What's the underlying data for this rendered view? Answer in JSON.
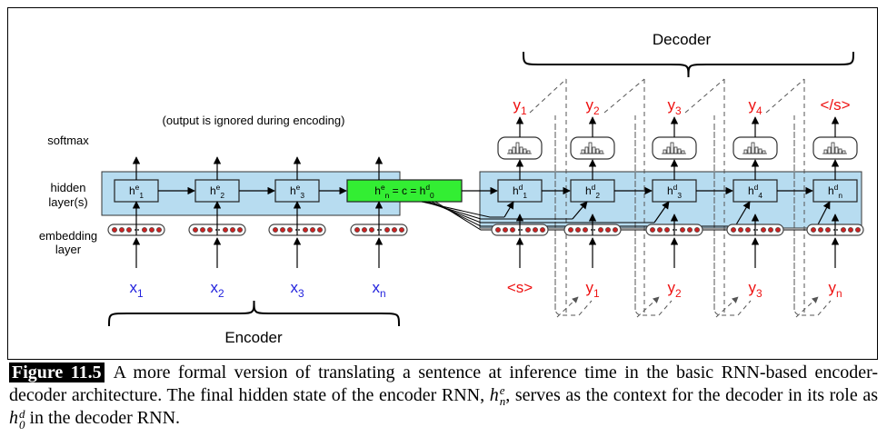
{
  "figure": {
    "decoder_label": "Decoder",
    "encoder_label": "Encoder",
    "note": "(output is ignored during encoding)",
    "row_labels": {
      "softmax": "softmax",
      "hidden_line1": "hidden",
      "hidden_line2": "layer(s)",
      "embedding_line1": "embedding",
      "embedding_line2": "layer"
    },
    "encoder": {
      "hidden": [
        {
          "base": "h",
          "sup": "e",
          "sub": "1"
        },
        {
          "base": "h",
          "sup": "e",
          "sub": "2"
        },
        {
          "base": "h",
          "sup": "e",
          "sub": "3"
        }
      ],
      "final": {
        "base": "h",
        "sup": "e",
        "sub": "n",
        "mid": " = c = ",
        "base2": "h",
        "sup2": "d",
        "sub2": "0"
      },
      "inputs": [
        {
          "base": "x",
          "sub": "1"
        },
        {
          "base": "x",
          "sub": "2"
        },
        {
          "base": "x",
          "sub": "3"
        },
        {
          "base": "x",
          "sub": "n"
        }
      ]
    },
    "decoder": {
      "hidden": [
        {
          "base": "h",
          "sup": "d",
          "sub": "1"
        },
        {
          "base": "h",
          "sup": "d",
          "sub": "2"
        },
        {
          "base": "h",
          "sup": "d",
          "sub": "3"
        },
        {
          "base": "h",
          "sup": "d",
          "sub": "4"
        },
        {
          "base": "h",
          "sup": "d",
          "sub": "n"
        }
      ],
      "outputs": [
        {
          "base": "y",
          "sub": "1"
        },
        {
          "base": "y",
          "sub": "2"
        },
        {
          "base": "y",
          "sub": "3"
        },
        {
          "base": "y",
          "sub": "4"
        },
        {
          "base": "</s>",
          "sub": ""
        }
      ],
      "inputs": [
        {
          "base": "<s>",
          "sub": ""
        },
        {
          "base": "y",
          "sub": "1"
        },
        {
          "base": "y",
          "sub": "2"
        },
        {
          "base": "y",
          "sub": "3"
        },
        {
          "base": "y",
          "sub": "n"
        }
      ]
    },
    "colors": {
      "layer_fill": "#b7dcf0",
      "cell_fill": "#b7dcf0",
      "context_fill": "#33ee33",
      "input_blue": "#2222dd",
      "output_red": "#ee1111",
      "embed_dot": "#cc2222"
    }
  },
  "caption": {
    "label": "Figure 11.5",
    "text1": "A more formal version of translating a sentence at inference time in the basic RNN-based encoder-decoder architecture. The final hidden state of the encoder RNN,",
    "var1": "h",
    "var1_sup": "e",
    "var1_sub": "n",
    "text2": ", serves as the context for the decoder in its role as",
    "var2": "h",
    "var2_sup": "d",
    "var2_sub": "0",
    "text3": "in the decoder RNN."
  }
}
